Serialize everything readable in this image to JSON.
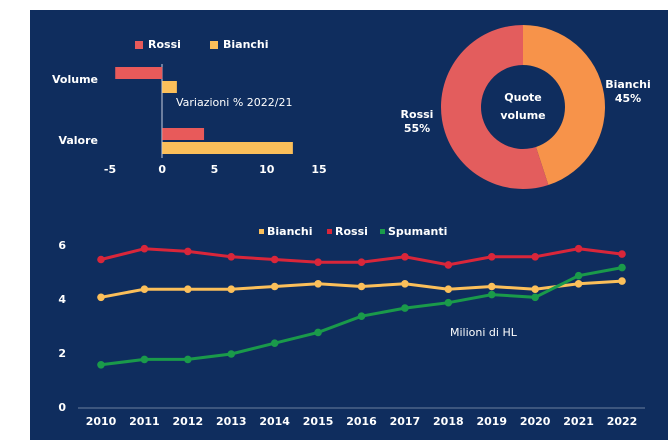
{
  "chart_data": [
    {
      "type": "hbar",
      "annotation": "Variazioni % 2022/21",
      "categories": [
        "Volume",
        "Valore"
      ],
      "series": [
        {
          "name": "Rossi",
          "color": "#e85a5a",
          "values": [
            -4.5,
            4.0
          ]
        },
        {
          "name": "Bianchi",
          "color": "#fbbf5a",
          "values": [
            1.4,
            12.5
          ]
        }
      ],
      "xlim": [
        -5,
        15
      ],
      "xticks": [
        -5,
        0,
        5,
        10,
        15
      ]
    },
    {
      "type": "donut",
      "center_label": [
        "Quote",
        "volume"
      ],
      "categories": [
        "Bianchi",
        "Rossi"
      ],
      "values": [
        45,
        55
      ],
      "value_labels": [
        "45%",
        "55%"
      ],
      "colors": [
        "#f7934a",
        "#e35d5d"
      ]
    },
    {
      "type": "line",
      "annotation": "Milioni di HL",
      "categories": [
        "2010",
        "2011",
        "2012",
        "2013",
        "2014",
        "2015",
        "2016",
        "2017",
        "2018",
        "2019",
        "2020",
        "2021",
        "2022"
      ],
      "series": [
        {
          "name": "Bianchi",
          "color": "#fbbf5a",
          "values": [
            4.1,
            4.4,
            4.4,
            4.4,
            4.5,
            4.6,
            4.5,
            4.6,
            4.4,
            4.5,
            4.4,
            4.6,
            4.7
          ]
        },
        {
          "name": "Rossi",
          "color": "#d9263a",
          "values": [
            5.5,
            5.9,
            5.8,
            5.6,
            5.5,
            5.4,
            5.4,
            5.6,
            5.3,
            5.6,
            5.6,
            5.9,
            5.7
          ]
        },
        {
          "name": "Spumanti",
          "color": "#1a9a4a",
          "values": [
            1.6,
            1.8,
            1.8,
            2.0,
            2.4,
            2.8,
            3.4,
            3.7,
            3.9,
            4.2,
            4.1,
            4.9,
            5.2
          ]
        }
      ],
      "ylim": [
        0,
        7
      ],
      "yticks": [
        0,
        2,
        4,
        6
      ]
    }
  ]
}
